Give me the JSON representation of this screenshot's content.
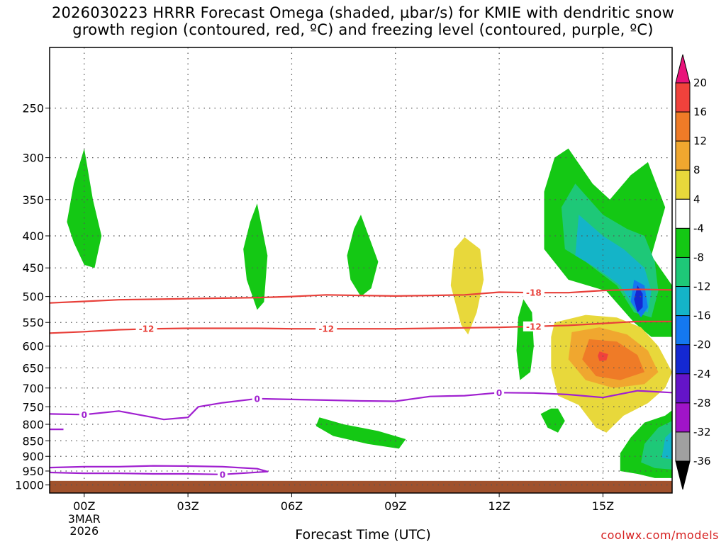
{
  "title_line1": "2026030223 HRRR Forecast Omega (shaded, µbar/s) for KMIE with dendritic snow",
  "title_line2": "growth region (contoured, red, ºC) and freezing level (contoured, purple, ºC)",
  "credit": "coolwx.com/models",
  "chart_data": {
    "type": "time-height cross section",
    "title": "2026030223 HRRR Forecast Omega (shaded, µbar/s) for KMIE with dendritic snow growth region (contoured, red, ºC) and freezing level (contoured, purple, ºC)",
    "xlabel": "Forecast Time (UTC)",
    "ylabel": "",
    "x_ticks": [
      {
        "hour": 0,
        "label": "00Z"
      },
      {
        "hour": 3,
        "label": "03Z"
      },
      {
        "hour": 6,
        "label": "06Z"
      },
      {
        "hour": 9,
        "label": "09Z"
      },
      {
        "hour": 12,
        "label": "12Z"
      },
      {
        "hour": 15,
        "label": "15Z"
      }
    ],
    "x_date_label": [
      "3MAR",
      "2026"
    ],
    "xlim": [
      -1,
      17
    ],
    "y_ticks": [
      250,
      300,
      350,
      400,
      450,
      500,
      550,
      600,
      650,
      700,
      750,
      800,
      850,
      900,
      950,
      1000
    ],
    "y_scale": "log pressure (hPa), inverted",
    "ylim": [
      1030,
      200
    ],
    "grid": true,
    "colorbar": {
      "labels": [
        "20",
        "16",
        "12",
        "8",
        "4",
        "-4",
        "-8",
        "-12",
        "-16",
        "-20",
        "-24",
        "-28",
        "-32",
        "-36"
      ],
      "colors": [
        "#e8137a",
        "#f0423c",
        "#ef7b27",
        "#f0a72f",
        "#e8d83b",
        "#ffffff",
        "#14c814",
        "#1ec878",
        "#14b4c8",
        "#1478f0",
        "#1428d2",
        "#6414c8",
        "#a014c8",
        "#a0a0a0",
        "#000000"
      ]
    },
    "omega_regions": [
      {
        "level": -8,
        "color": "#14c814",
        "outline": [
          [
            0.0,
            290
          ],
          [
            0.25,
            350
          ],
          [
            0.5,
            400
          ],
          [
            0.3,
            450
          ],
          [
            0.0,
            445
          ],
          [
            -0.3,
            410
          ],
          [
            -0.5,
            380
          ],
          [
            -0.3,
            330
          ]
        ]
      },
      {
        "level": -8,
        "color": "#14c814",
        "outline": [
          [
            5.0,
            355
          ],
          [
            5.3,
            430
          ],
          [
            5.2,
            510
          ],
          [
            5.0,
            525
          ],
          [
            4.7,
            470
          ],
          [
            4.6,
            420
          ],
          [
            4.8,
            380
          ]
        ]
      },
      {
        "level": -8,
        "color": "#14c814",
        "outline": [
          [
            8.0,
            370
          ],
          [
            8.5,
            440
          ],
          [
            8.3,
            485
          ],
          [
            8.0,
            500
          ],
          [
            7.7,
            470
          ],
          [
            7.6,
            430
          ],
          [
            7.8,
            390
          ]
        ]
      },
      {
        "level": 4,
        "color": "#e8d83b",
        "outline": [
          [
            11.0,
            402
          ],
          [
            11.45,
            420
          ],
          [
            11.55,
            470
          ],
          [
            11.35,
            530
          ],
          [
            11.1,
            575
          ],
          [
            10.9,
            555
          ],
          [
            10.6,
            480
          ],
          [
            10.7,
            420
          ]
        ]
      },
      {
        "level": -8,
        "color": "#14c814",
        "outline": [
          [
            12.7,
            505
          ],
          [
            12.95,
            530
          ],
          [
            13.0,
            600
          ],
          [
            12.9,
            660
          ],
          [
            12.6,
            680
          ],
          [
            12.5,
            610
          ],
          [
            12.55,
            540
          ]
        ]
      },
      {
        "level": -8,
        "color": "#14c814",
        "outline": [
          [
            13.7,
            755
          ],
          [
            13.9,
            790
          ],
          [
            13.7,
            825
          ],
          [
            13.4,
            810
          ],
          [
            13.2,
            770
          ],
          [
            13.5,
            755
          ]
        ]
      },
      {
        "level": -8,
        "color": "#14c814",
        "outline": [
          [
            6.8,
            780
          ],
          [
            7.5,
            800
          ],
          [
            8.5,
            820
          ],
          [
            9.3,
            845
          ],
          [
            9.1,
            875
          ],
          [
            8.2,
            860
          ],
          [
            7.2,
            835
          ],
          [
            6.7,
            805
          ]
        ]
      },
      {
        "level": -8,
        "color": "#14c814",
        "outline": [
          [
            14.0,
            290
          ],
          [
            14.7,
            330
          ],
          [
            15.2,
            350
          ],
          [
            15.8,
            320
          ],
          [
            16.3,
            305
          ],
          [
            16.8,
            360
          ],
          [
            16.4,
            430
          ],
          [
            17.0,
            480
          ],
          [
            17.0,
            580
          ],
          [
            16.4,
            580
          ],
          [
            15.9,
            550
          ],
          [
            15.1,
            490
          ],
          [
            14.0,
            470
          ],
          [
            13.3,
            420
          ],
          [
            13.3,
            340
          ],
          [
            13.6,
            300
          ]
        ]
      },
      {
        "level": -12,
        "color": "#1ec878",
        "outline": [
          [
            14.2,
            330
          ],
          [
            15.0,
            370
          ],
          [
            15.7,
            390
          ],
          [
            16.2,
            400
          ],
          [
            16.5,
            440
          ],
          [
            16.6,
            490
          ],
          [
            16.4,
            540
          ],
          [
            15.9,
            530
          ],
          [
            15.4,
            480
          ],
          [
            14.5,
            440
          ],
          [
            13.9,
            420
          ],
          [
            13.8,
            360
          ]
        ]
      },
      {
        "level": -16,
        "color": "#14b4c8",
        "outline": [
          [
            14.3,
            370
          ],
          [
            15.0,
            400
          ],
          [
            15.6,
            420
          ],
          [
            16.2,
            450
          ],
          [
            16.4,
            490
          ],
          [
            16.3,
            530
          ],
          [
            15.9,
            520
          ],
          [
            15.5,
            480
          ],
          [
            14.8,
            450
          ],
          [
            14.2,
            430
          ]
        ]
      },
      {
        "level": -20,
        "color": "#1478f0",
        "outline": [
          [
            15.9,
            470
          ],
          [
            16.2,
            480
          ],
          [
            16.3,
            520
          ],
          [
            16.1,
            540
          ],
          [
            15.8,
            510
          ]
        ]
      },
      {
        "level": -24,
        "color": "#1428d2",
        "outline": [
          [
            16.0,
            480
          ],
          [
            16.15,
            495
          ],
          [
            16.15,
            520
          ],
          [
            16.0,
            530
          ],
          [
            15.9,
            505
          ]
        ]
      },
      {
        "level": 4,
        "color": "#e8d83b",
        "outline": [
          [
            13.6,
            550
          ],
          [
            14.5,
            535
          ],
          [
            15.4,
            540
          ],
          [
            16.1,
            560
          ],
          [
            16.6,
            600
          ],
          [
            17.0,
            660
          ],
          [
            16.8,
            700
          ],
          [
            16.3,
            740
          ],
          [
            15.6,
            775
          ],
          [
            15.1,
            825
          ],
          [
            14.8,
            810
          ],
          [
            14.3,
            745
          ],
          [
            13.7,
            720
          ],
          [
            13.5,
            650
          ],
          [
            13.5,
            580
          ]
        ]
      },
      {
        "level": 8,
        "color": "#f0a72f",
        "outline": [
          [
            14.1,
            570
          ],
          [
            14.9,
            560
          ],
          [
            15.7,
            575
          ],
          [
            16.3,
            610
          ],
          [
            16.6,
            660
          ],
          [
            16.2,
            690
          ],
          [
            15.3,
            700
          ],
          [
            14.5,
            680
          ],
          [
            14.0,
            630
          ]
        ]
      },
      {
        "level": 12,
        "color": "#ef7b27",
        "outline": [
          [
            14.6,
            585
          ],
          [
            15.4,
            590
          ],
          [
            16.0,
            620
          ],
          [
            16.2,
            660
          ],
          [
            15.5,
            680
          ],
          [
            14.8,
            670
          ],
          [
            14.4,
            630
          ]
        ]
      },
      {
        "level": 16,
        "color": "#f0423c",
        "outline": [
          [
            14.9,
            612
          ],
          [
            15.15,
            618
          ],
          [
            15.1,
            632
          ],
          [
            14.9,
            634
          ],
          [
            14.85,
            622
          ]
        ]
      },
      {
        "level": -8,
        "color": "#14c814",
        "outline": [
          [
            16.2,
            795
          ],
          [
            16.8,
            775
          ],
          [
            17.0,
            760
          ],
          [
            17.0,
            975
          ],
          [
            16.5,
            975
          ],
          [
            16.0,
            960
          ],
          [
            15.5,
            950
          ],
          [
            15.5,
            890
          ],
          [
            15.8,
            840
          ]
        ]
      },
      {
        "level": -12,
        "color": "#1ec878",
        "outline": [
          [
            16.6,
            810
          ],
          [
            17.0,
            790
          ],
          [
            17.0,
            945
          ],
          [
            16.5,
            940
          ],
          [
            16.1,
            920
          ],
          [
            16.2,
            860
          ]
        ]
      },
      {
        "level": -16,
        "color": "#14b4c8",
        "outline": [
          [
            16.8,
            840
          ],
          [
            17.0,
            820
          ],
          [
            17.0,
            910
          ],
          [
            16.7,
            905
          ]
        ]
      }
    ],
    "contours": [
      {
        "name": "-18",
        "color": "#e8403a",
        "points": [
          [
            -1,
            512
          ],
          [
            0,
            509
          ],
          [
            1,
            506
          ],
          [
            2,
            505
          ],
          [
            3,
            504
          ],
          [
            4,
            503
          ],
          [
            5,
            502
          ],
          [
            6,
            500
          ],
          [
            7,
            497
          ],
          [
            8,
            498
          ],
          [
            9,
            499
          ],
          [
            10,
            498
          ],
          [
            11,
            497
          ],
          [
            12,
            492
          ],
          [
            13,
            493
          ],
          [
            14,
            493
          ],
          [
            15,
            489
          ],
          [
            16,
            487
          ],
          [
            17,
            488
          ]
        ],
        "labels": [
          {
            "hour": 13.0,
            "pres": 493,
            "text": "-18"
          }
        ]
      },
      {
        "name": "-12",
        "color": "#e8403a",
        "points": [
          [
            -1,
            572
          ],
          [
            0,
            569
          ],
          [
            1,
            565
          ],
          [
            2,
            563
          ],
          [
            3,
            562
          ],
          [
            4,
            562
          ],
          [
            5,
            562
          ],
          [
            6,
            563
          ],
          [
            7,
            563
          ],
          [
            8,
            563
          ],
          [
            9,
            563
          ],
          [
            10,
            562
          ],
          [
            11,
            561
          ],
          [
            12,
            560
          ],
          [
            13,
            558
          ],
          [
            14,
            556
          ],
          [
            15,
            552
          ],
          [
            16,
            548
          ],
          [
            17,
            548
          ]
        ],
        "labels": [
          {
            "hour": 1.8,
            "pres": 563,
            "text": "-12"
          },
          {
            "hour": 7.0,
            "pres": 563,
            "text": "-12"
          },
          {
            "hour": 13.0,
            "pres": 558,
            "text": "-12"
          }
        ]
      },
      {
        "name": "0",
        "color": "#a020d0",
        "points": [
          [
            -1,
            770
          ],
          [
            0,
            772
          ],
          [
            1,
            762
          ],
          [
            2,
            780
          ],
          [
            2.3,
            786
          ],
          [
            3,
            780
          ],
          [
            3.3,
            750
          ],
          [
            4,
            739
          ],
          [
            5,
            728
          ],
          [
            6,
            730
          ],
          [
            7,
            732
          ],
          [
            8,
            734
          ],
          [
            9,
            735
          ],
          [
            10,
            722
          ],
          [
            11,
            720
          ],
          [
            12,
            712
          ],
          [
            13,
            713
          ],
          [
            14,
            717
          ],
          [
            15,
            725
          ],
          [
            16,
            707
          ],
          [
            17,
            712
          ]
        ],
        "labels": [
          {
            "hour": 0.0,
            "pres": 772,
            "text": "0"
          },
          {
            "hour": 5.0,
            "pres": 728,
            "text": "0"
          },
          {
            "hour": 12.0,
            "pres": 712,
            "text": "0"
          }
        ]
      },
      {
        "name": "0 (lower)",
        "color": "#a020d0",
        "points": [
          [
            -1,
            938
          ],
          [
            0,
            935
          ],
          [
            1,
            935
          ],
          [
            2,
            932
          ],
          [
            3,
            933
          ],
          [
            4,
            935
          ],
          [
            5,
            942
          ],
          [
            5.3,
            952
          ],
          [
            4,
            962
          ],
          [
            3,
            960
          ],
          [
            2,
            960
          ],
          [
            1,
            958
          ],
          [
            0,
            958
          ],
          [
            -1,
            955
          ]
        ],
        "labels": [
          {
            "hour": 4.0,
            "pres": 962,
            "text": "0"
          }
        ]
      },
      {
        "name": "0 (stub)",
        "color": "#a020d0",
        "points": [
          [
            -1,
            815
          ],
          [
            -0.6,
            815
          ]
        ],
        "labels": []
      }
    ],
    "ground": {
      "color": "#a0522d",
      "top_pres": 985
    }
  }
}
